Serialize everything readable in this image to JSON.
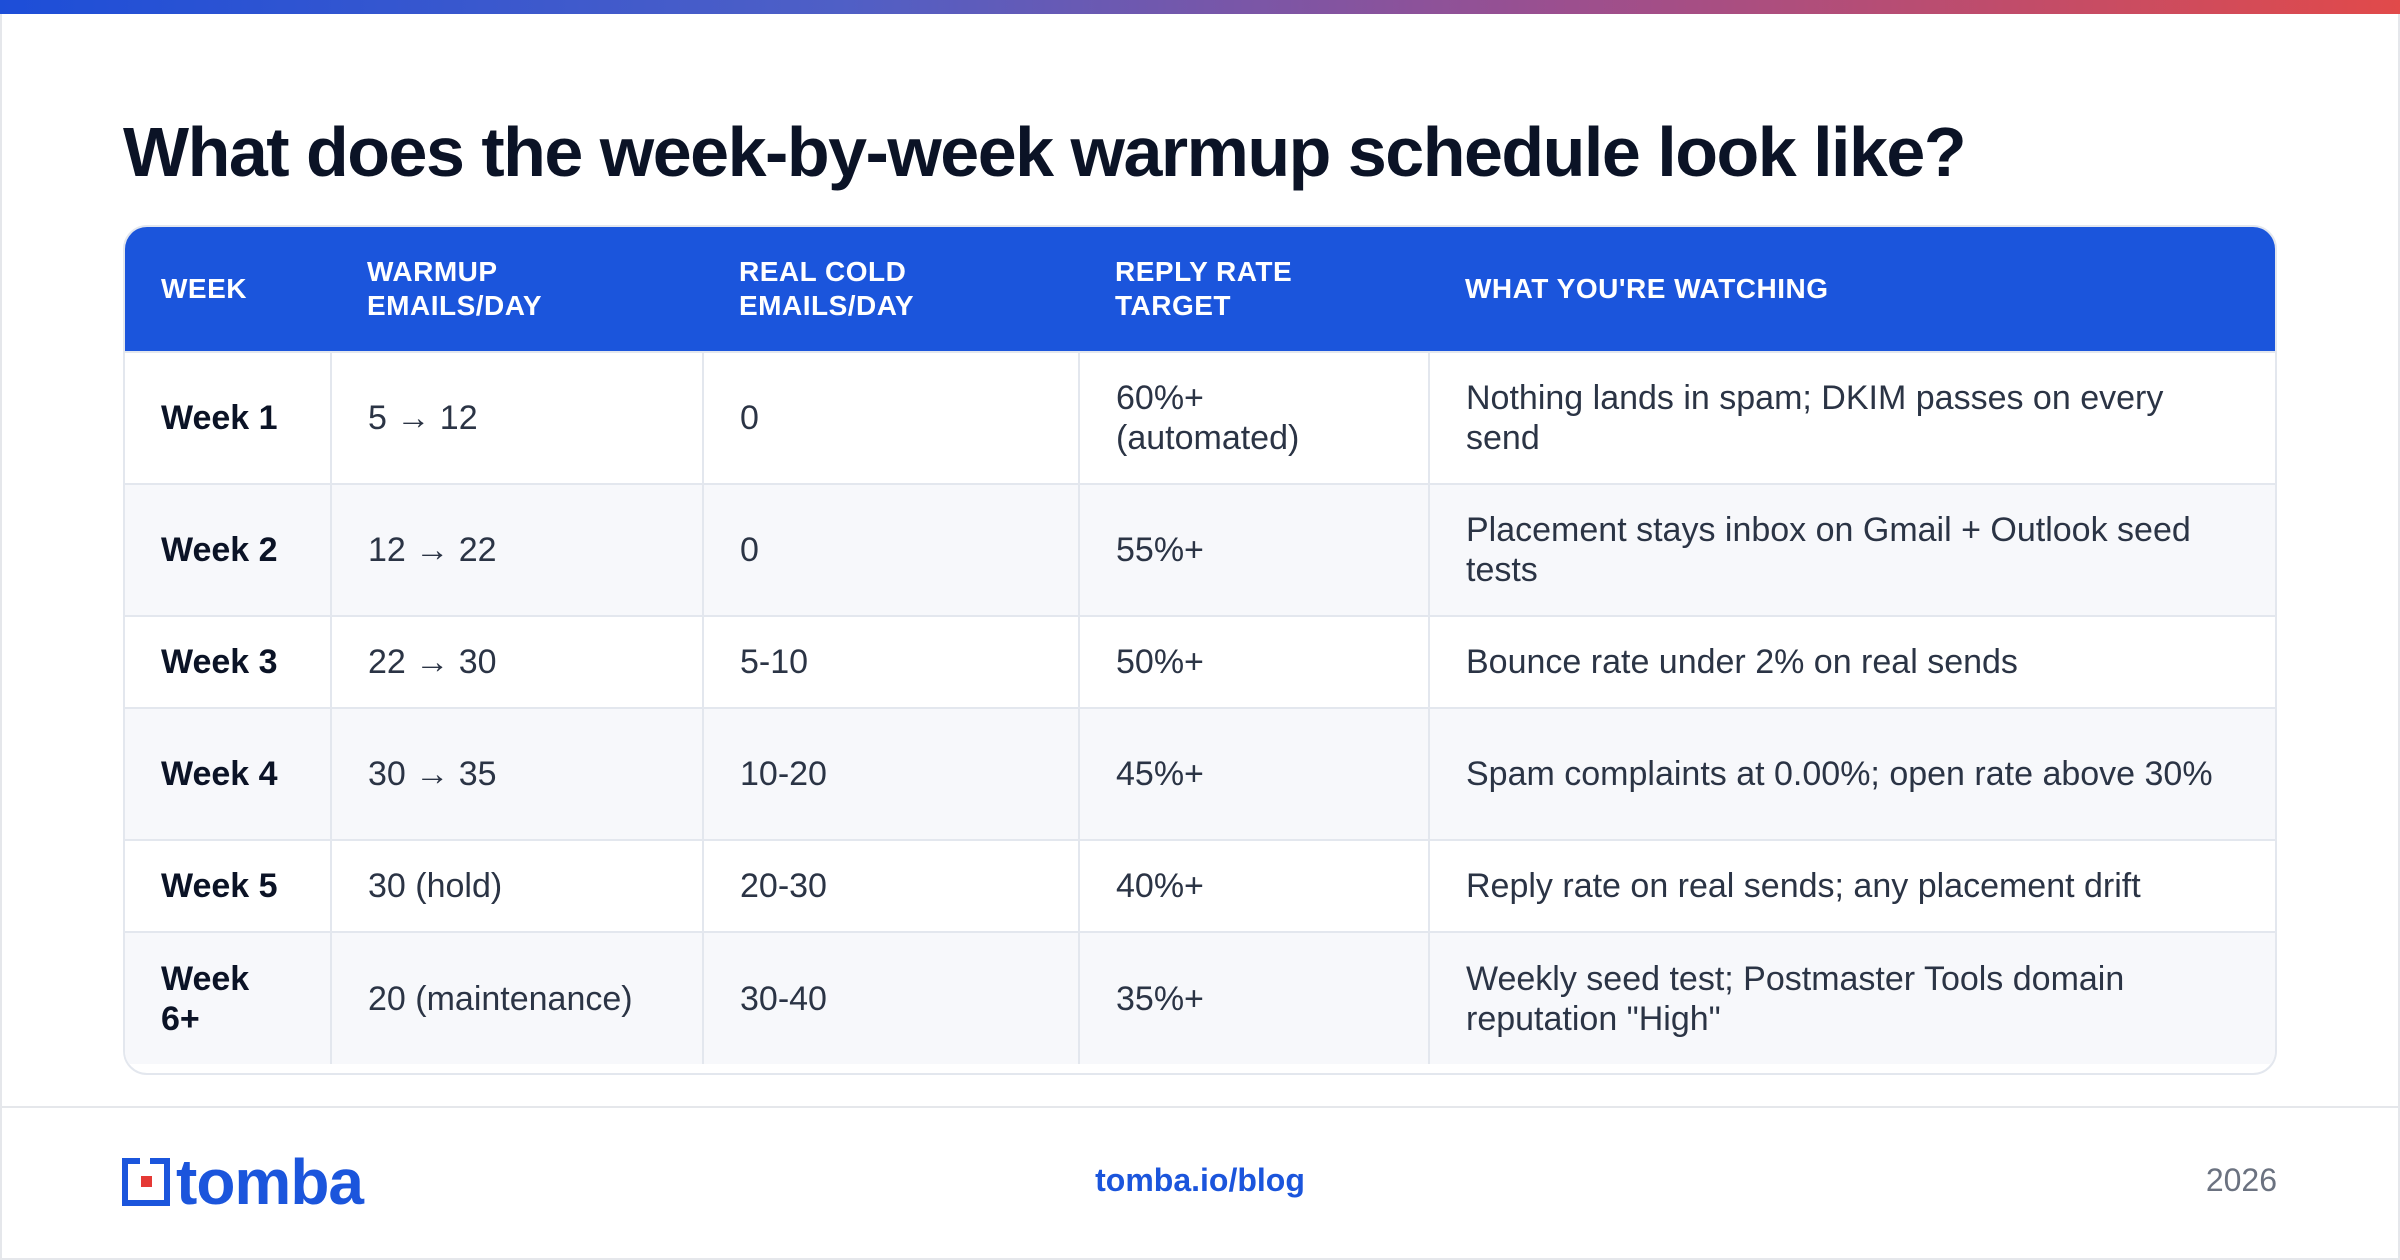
{
  "title": "What does the week-by-week warmup schedule look like?",
  "table": {
    "headers": [
      "WEEK",
      "WARMUP\nEMAILS/DAY",
      "REAL COLD\nEMAILS/DAY",
      "REPLY RATE\nTARGET",
      "WHAT YOU'RE WATCHING"
    ],
    "rows": [
      [
        "Week 1",
        "5 → 12",
        "0",
        "60%+ (automated)",
        "Nothing lands in spam; DKIM passes on every send"
      ],
      [
        "Week 2",
        "12 → 22",
        "0",
        "55%+",
        "Placement stays inbox on Gmail + Outlook seed tests"
      ],
      [
        "Week 3",
        "22 → 30",
        "5-10",
        "50%+",
        "Bounce rate under 2% on real sends"
      ],
      [
        "Week 4",
        "30 → 35",
        "10-20",
        "45%+",
        "Spam complaints at 0.00%; open rate above 30%"
      ],
      [
        "Week 5",
        "30 (hold)",
        "20-30",
        "40%+",
        "Reply rate on real sends; any placement drift"
      ],
      [
        "Week 6+",
        "20 (maintenance)",
        "30-40",
        "35%+",
        "Weekly seed test; Postmaster Tools domain reputation \"High\""
      ]
    ]
  },
  "footer": {
    "logo_text": "tomba",
    "link": "tomba.io/blog",
    "year": "2026"
  },
  "colors": {
    "accent": "#1b55dc",
    "logo_red": "#e53935"
  }
}
